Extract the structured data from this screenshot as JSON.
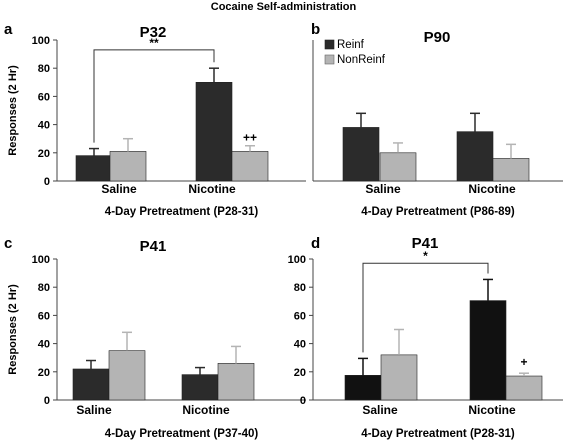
{
  "figure_title": "Cocaine Self-administration",
  "legend": {
    "reinf": "Reinf",
    "nonreinf": "NonReinf"
  },
  "colors": {
    "reinf_bcd": "#2b2b2b",
    "reinf_d": "#111111",
    "nonreinf": "#b4b4b4",
    "axis": "#444444"
  },
  "chart_data": [
    {
      "type": "bar",
      "letter": "a",
      "title": "P32",
      "categories": [
        "Saline",
        "Nicotine"
      ],
      "xlabel": "4-Day Pretreatment (P28-31)",
      "ylabel": "Responses (2 Hr)",
      "ylim": [
        0,
        100
      ],
      "yticks": [
        "0",
        "20",
        "40",
        "60",
        "80",
        "100"
      ],
      "series": [
        {
          "name": "Reinf",
          "values": [
            18,
            70
          ],
          "errors": [
            5,
            10
          ]
        },
        {
          "name": "NonReinf",
          "values": [
            21,
            21
          ],
          "errors": [
            9,
            4
          ]
        }
      ],
      "annotations": [
        {
          "type": "bracket",
          "label": "**",
          "from": 0,
          "to": 1,
          "y": 93
        },
        {
          "type": "mark",
          "label": "++",
          "category": 1,
          "series": 1,
          "y": 28
        }
      ]
    },
    {
      "type": "bar",
      "letter": "b",
      "title": "P90",
      "categories": [
        "Saline",
        "Nicotine"
      ],
      "xlabel": "4-Day Pretreatment (P86-89)",
      "ylim": [
        0,
        100
      ],
      "series": [
        {
          "name": "Reinf",
          "values": [
            38,
            35
          ],
          "errors": [
            10,
            13
          ]
        },
        {
          "name": "NonReinf",
          "values": [
            20,
            16
          ],
          "errors": [
            7,
            10
          ]
        }
      ],
      "annotations": []
    },
    {
      "type": "bar",
      "letter": "c",
      "title": "P41",
      "categories": [
        "Saline",
        "Nicotine"
      ],
      "xlabel": "4-Day Pretreatment (P37-40)",
      "ylabel": "Responses (2 Hr)",
      "ylim": [
        0,
        100
      ],
      "yticks": [
        "0",
        "20",
        "40",
        "60",
        "80",
        "100"
      ],
      "series": [
        {
          "name": "Reinf",
          "values": [
            22,
            18
          ],
          "errors": [
            6,
            5
          ]
        },
        {
          "name": "NonReinf",
          "values": [
            35,
            26
          ],
          "errors": [
            13,
            12
          ]
        }
      ],
      "annotations": []
    },
    {
      "type": "bar",
      "letter": "d",
      "title": "P41",
      "categories": [
        "Saline",
        "Nicotine"
      ],
      "xlabel": "4-Day Pretreatment (P28-31)",
      "ylim": [
        0,
        100
      ],
      "yticks": [
        "0",
        "20",
        "40",
        "60",
        "80",
        "100"
      ],
      "series": [
        {
          "name": "Reinf",
          "values": [
            17.5,
            70.5
          ],
          "errors": [
            12,
            15
          ]
        },
        {
          "name": "NonReinf",
          "values": [
            32,
            17
          ],
          "errors": [
            18,
            2
          ]
        }
      ],
      "annotations": [
        {
          "type": "bracket",
          "label": "*",
          "from": 0,
          "to": 1,
          "y": 97
        },
        {
          "type": "mark",
          "label": "+",
          "category": 1,
          "series": 1,
          "y": 24
        }
      ]
    }
  ]
}
